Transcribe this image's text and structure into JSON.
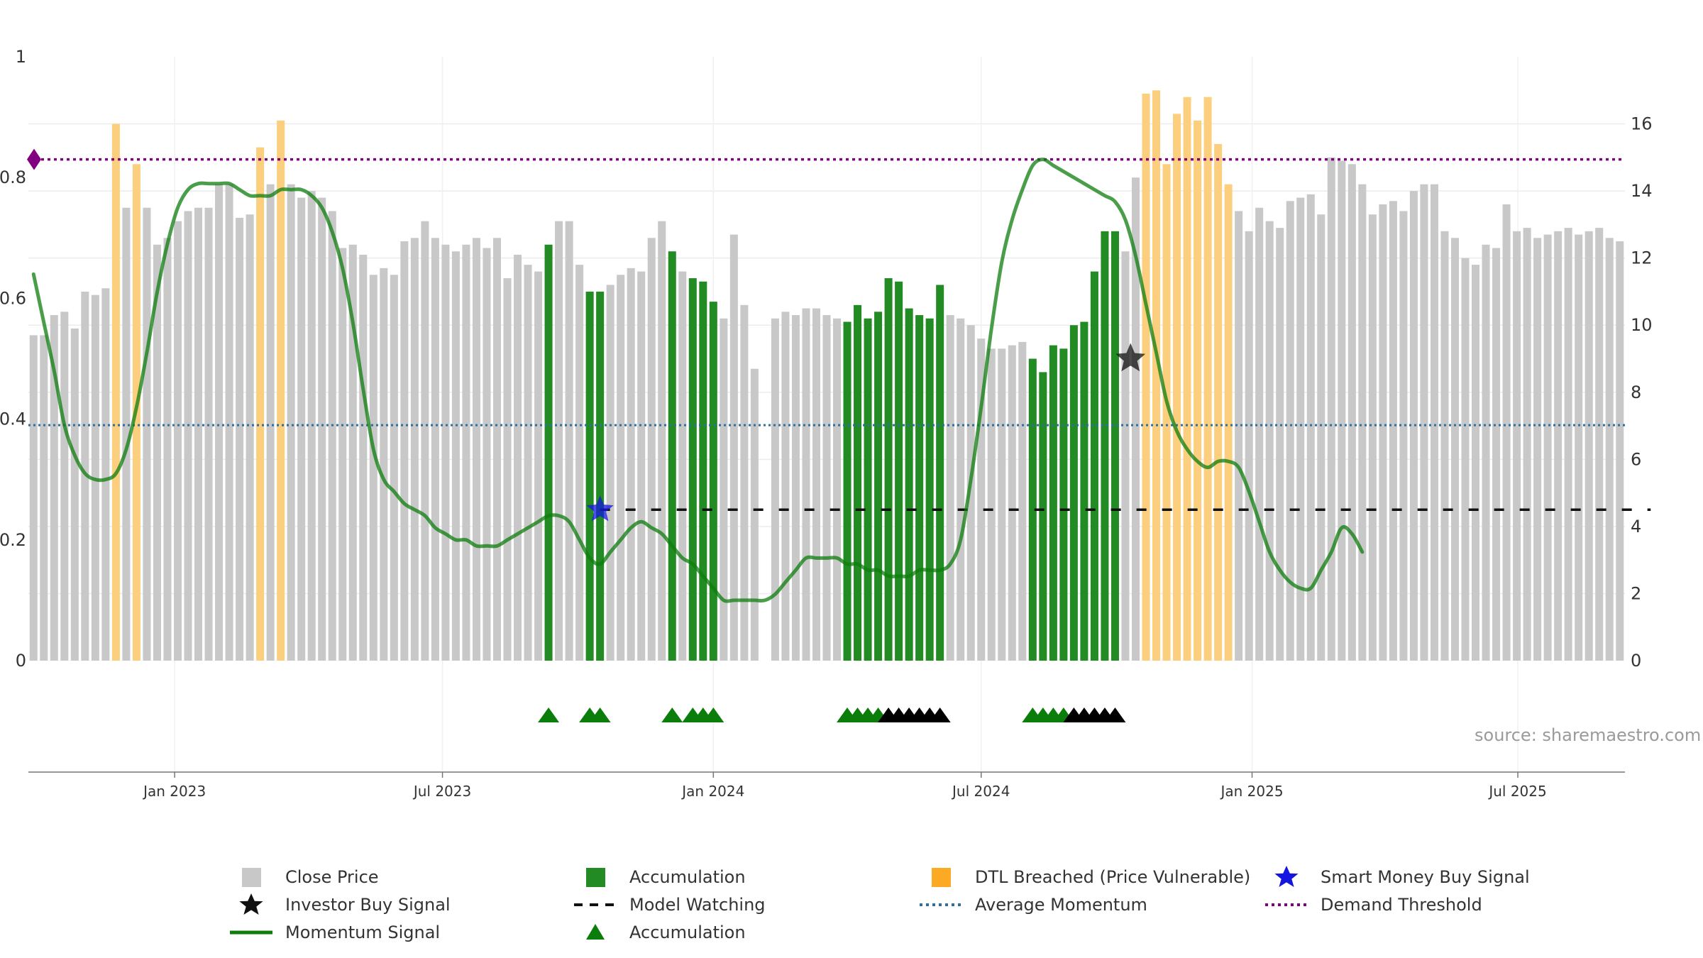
{
  "chart_data": {
    "type": "bar",
    "title": "",
    "source": "source: sharemaestro.com",
    "x_axis": {
      "tick_labels": [
        "Jan 2023",
        "Jul 2023",
        "Jan 2024",
        "Jul 2024",
        "Jan 2025",
        "Jul 2025"
      ],
      "tick_weeks": [
        13.7,
        39.7,
        66,
        92,
        118.3,
        144.1
      ]
    },
    "y_axis_left": {
      "range": [
        0,
        1
      ],
      "tick_labels": [
        "0",
        "0.2",
        "0.4",
        "0.6",
        "0.8",
        "1"
      ],
      "ticks": [
        0,
        0.2,
        0.4,
        0.6,
        0.8,
        1
      ]
    },
    "y_axis_right": {
      "range": [
        0,
        18
      ],
      "tick_labels": [
        "0",
        "2",
        "4",
        "6",
        "8",
        "10",
        "12",
        "14",
        "16"
      ],
      "ticks": [
        0,
        2,
        4,
        6,
        8,
        10,
        12,
        14,
        16
      ]
    },
    "close_price": [
      9.7,
      9.7,
      10.3,
      10.4,
      9.9,
      11,
      10.9,
      11.1,
      16,
      13.5,
      14.8,
      13.5,
      12.4,
      12.6,
      13.1,
      13.4,
      13.5,
      13.5,
      14.2,
      14.2,
      13.2,
      13.3,
      15.3,
      14.2,
      16.1,
      14.2,
      13.8,
      14,
      13.8,
      13.4,
      12.3,
      12.4,
      12.1,
      11.5,
      11.7,
      11.5,
      12.5,
      12.6,
      13.1,
      12.6,
      12.4,
      12.2,
      12.4,
      12.6,
      12.3,
      12.6,
      11.4,
      12.1,
      11.8,
      11.6,
      12.4,
      13.1,
      13.1,
      11.8,
      11,
      11,
      11.2,
      11.5,
      11.7,
      11.6,
      12.6,
      13.1,
      12.2,
      11.6,
      11.4,
      11.3,
      10.7,
      10.2,
      12.7,
      10.6,
      8.7,
      0,
      10.2,
      10.4,
      10.3,
      10.5,
      10.5,
      10.3,
      10.2,
      10.1,
      10.6,
      10.2,
      10.4,
      11.4,
      11.3,
      10.5,
      10.3,
      10.2,
      11.2,
      10.3,
      10.2,
      10,
      9.6,
      9.3,
      9.3,
      9.4,
      9.5,
      9,
      8.6,
      9.4,
      9.3,
      10,
      10.1,
      11.6,
      12.8,
      12.8,
      12.2,
      14.4,
      16.9,
      17,
      14.8,
      16.3,
      16.8,
      16.1,
      16.8,
      15.4,
      14.2,
      13.4,
      12.8,
      13.5,
      13.1,
      12.9,
      13.7,
      13.8,
      13.9,
      13.3,
      15,
      14.9,
      14.8,
      14.2,
      13.3,
      13.6,
      13.7,
      13.4,
      14,
      14.2,
      14.2,
      12.8,
      12.6,
      12,
      11.8,
      12.4,
      12.3,
      13.6,
      12.8,
      12.9,
      12.6,
      12.7,
      12.8,
      12.9,
      12.7,
      12.8,
      12.9,
      12.6,
      12.5
    ],
    "bar_categories": "Per weekly bar: gray = Close Price, green = Accumulation, orange = DTL Breached (Price Vulnerable)",
    "accumulation_bars": [
      50,
      54,
      55,
      62,
      64,
      65,
      66,
      79,
      80,
      81,
      82,
      83,
      84,
      85,
      86,
      87,
      88,
      97,
      98,
      99,
      100,
      101,
      102,
      103,
      104,
      105
    ],
    "dtl_breached_bars": [
      8,
      10,
      22,
      24,
      108,
      109,
      110,
      111,
      112,
      113,
      114,
      115,
      116
    ],
    "momentum_signal": [
      0.64,
      0.56,
      0.48,
      0.39,
      0.34,
      0.31,
      0.3,
      0.3,
      0.31,
      0.35,
      0.42,
      0.51,
      0.61,
      0.69,
      0.75,
      0.78,
      0.79,
      0.79,
      0.79,
      0.79,
      0.78,
      0.77,
      0.77,
      0.77,
      0.78,
      0.78,
      0.78,
      0.77,
      0.75,
      0.71,
      0.65,
      0.56,
      0.45,
      0.35,
      0.3,
      0.28,
      0.26,
      0.25,
      0.24,
      0.22,
      0.21,
      0.2,
      0.2,
      0.19,
      0.19,
      0.19,
      0.2,
      0.21,
      0.22,
      0.23,
      0.24,
      0.24,
      0.23,
      0.2,
      0.17,
      0.16,
      0.18,
      0.2,
      0.22,
      0.23,
      0.22,
      0.21,
      0.19,
      0.17,
      0.16,
      0.14,
      0.12,
      0.1,
      0.1,
      0.1,
      0.1,
      0.1,
      0.11,
      0.13,
      0.15,
      0.17,
      0.17,
      0.17,
      0.17,
      0.16,
      0.16,
      0.15,
      0.15,
      0.14,
      0.14,
      0.14,
      0.15,
      0.15,
      0.15,
      0.16,
      0.2,
      0.3,
      0.42,
      0.55,
      0.66,
      0.73,
      0.78,
      0.82,
      0.83,
      0.82,
      0.81,
      0.8,
      0.79,
      0.78,
      0.77,
      0.76,
      0.73,
      0.67,
      0.59,
      0.51,
      0.43,
      0.38,
      0.35,
      0.33,
      0.32,
      0.33,
      0.33,
      0.32,
      0.28,
      0.23,
      0.18,
      0.15,
      0.13,
      0.12,
      0.12,
      0.15,
      0.18,
      0.22,
      0.21,
      0.18
    ],
    "average_momentum": 0.39,
    "demand_threshold": 0.83,
    "model_watching": {
      "level": 0.25,
      "from_week": 55,
      "to_week": 157
    },
    "smart_money_buy_signal": {
      "week": 55,
      "value": 0.25
    },
    "investor_buy_signal": {
      "week": 106.5,
      "value": 0.5
    },
    "accumulation_triangles": [
      50,
      54,
      55,
      62,
      64,
      65,
      66,
      79,
      80,
      81,
      82,
      97,
      98,
      99,
      100
    ],
    "black_triangles": [
      83,
      84,
      85,
      86,
      87,
      88,
      101,
      102,
      103,
      104,
      105
    ],
    "legend": [
      {
        "label": "Close Price",
        "symbol": "gray-square"
      },
      {
        "label": "Investor Buy Signal",
        "symbol": "black-star"
      },
      {
        "label": "Momentum Signal",
        "symbol": "green-line"
      },
      {
        "label": "Accumulation",
        "symbol": "green-square"
      },
      {
        "label": "Model Watching",
        "symbol": "black-dashed-line"
      },
      {
        "label": "Accumulation",
        "symbol": "green-triangle"
      },
      {
        "label": "DTL Breached (Price Vulnerable)",
        "symbol": "orange-square"
      },
      {
        "label": "Average Momentum",
        "symbol": "blue-dotted-line"
      },
      {
        "label": "Smart Money Buy Signal",
        "symbol": "blue-star"
      },
      {
        "label": "Demand Threshold",
        "symbol": "purple-dotted-line"
      }
    ],
    "colors": {
      "close_price": "#c8c8c8",
      "accumulation": "#238b23",
      "dtl_breached": "#fccf7e",
      "momentum": "#0e7d0e",
      "average_momentum": "#2e6f9e",
      "demand_threshold": "#800080",
      "model_watching": "#111111",
      "smart_money": "#1515e0",
      "investor": "#111111",
      "triangle_green": "#0a7d0a",
      "triangle_black": "#000000"
    }
  }
}
